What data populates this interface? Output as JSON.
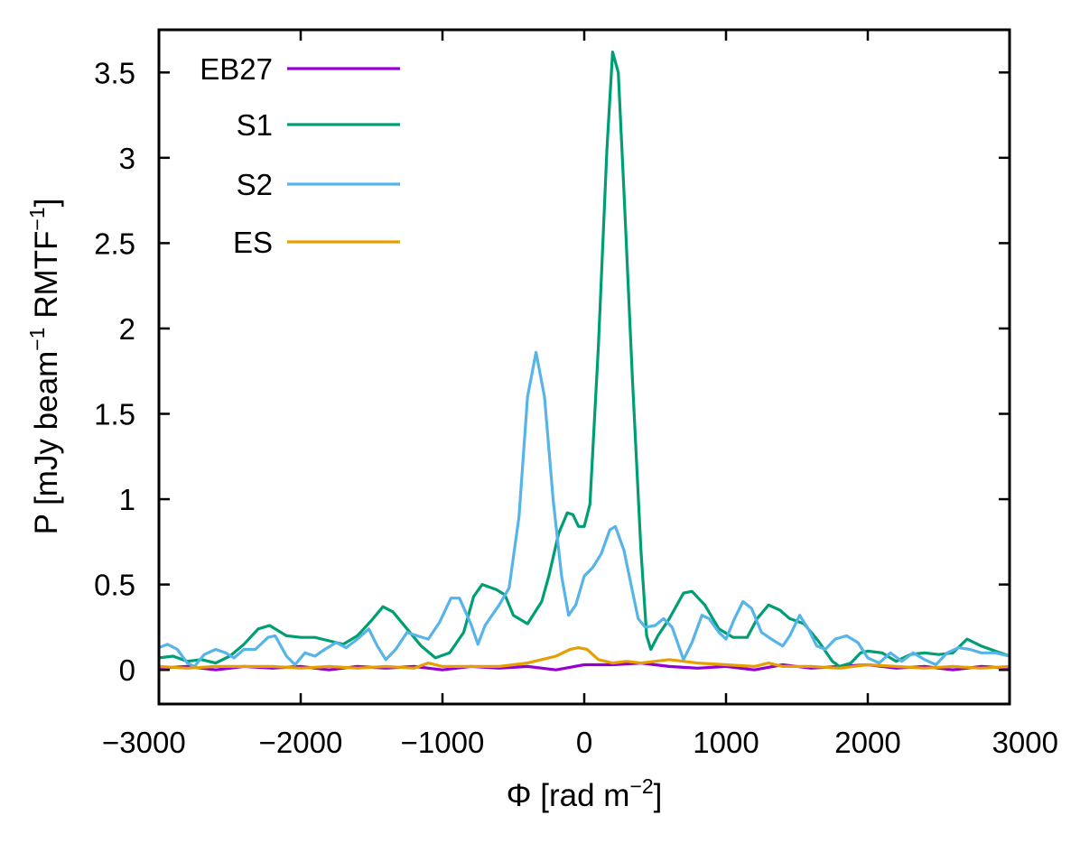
{
  "chart_data": {
    "type": "line",
    "xlabel_main": "Φ [rad m",
    "xlabel_sup": "−2",
    "xlabel_tail": "]",
    "ylabel_part1": "P [mJy beam",
    "ylabel_sup1": "−1",
    "ylabel_part2": " RMTF",
    "ylabel_sup2": "−1",
    "ylabel_tail": "]",
    "xlim": [
      -3000,
      3000
    ],
    "ylim": [
      -0.2,
      3.75
    ],
    "xticks": [
      -3000,
      -2000,
      -1000,
      0,
      1000,
      2000,
      3000
    ],
    "xtick_labels": [
      "−3000",
      "−2000",
      "−1000",
      "0",
      "1000",
      "2000",
      "3000"
    ],
    "yticks": [
      0,
      0.5,
      1,
      1.5,
      2,
      2.5,
      3,
      3.5
    ],
    "ytick_labels": [
      "0",
      "0.5",
      "1",
      "1.5",
      "2",
      "2.5",
      "3",
      "3.5"
    ],
    "legend_position": "top-left",
    "series": [
      {
        "name": "EB27",
        "color": "#9400d3",
        "points": [
          [
            -3000,
            0.01
          ],
          [
            -2800,
            0.02
          ],
          [
            -2600,
            0.0
          ],
          [
            -2400,
            0.02
          ],
          [
            -2200,
            0.01
          ],
          [
            -2000,
            0.02
          ],
          [
            -1800,
            0.0
          ],
          [
            -1600,
            0.02
          ],
          [
            -1400,
            0.01
          ],
          [
            -1200,
            0.02
          ],
          [
            -1000,
            0.0
          ],
          [
            -800,
            0.02
          ],
          [
            -600,
            0.01
          ],
          [
            -400,
            0.02
          ],
          [
            -200,
            0.0
          ],
          [
            0,
            0.03
          ],
          [
            200,
            0.03
          ],
          [
            400,
            0.04
          ],
          [
            600,
            0.02
          ],
          [
            800,
            0.01
          ],
          [
            1000,
            0.02
          ],
          [
            1200,
            0.0
          ],
          [
            1400,
            0.03
          ],
          [
            1600,
            0.01
          ],
          [
            1800,
            0.02
          ],
          [
            2000,
            0.03
          ],
          [
            2200,
            0.01
          ],
          [
            2400,
            0.02
          ],
          [
            2600,
            0.0
          ],
          [
            2800,
            0.02
          ],
          [
            3000,
            0.01
          ]
        ]
      },
      {
        "name": "S1",
        "color": "#009e73",
        "points": [
          [
            -3000,
            0.07
          ],
          [
            -2900,
            0.08
          ],
          [
            -2800,
            0.05
          ],
          [
            -2700,
            0.06
          ],
          [
            -2600,
            0.04
          ],
          [
            -2500,
            0.08
          ],
          [
            -2400,
            0.15
          ],
          [
            -2300,
            0.24
          ],
          [
            -2220,
            0.26
          ],
          [
            -2100,
            0.2
          ],
          [
            -2000,
            0.19
          ],
          [
            -1900,
            0.19
          ],
          [
            -1800,
            0.17
          ],
          [
            -1700,
            0.15
          ],
          [
            -1600,
            0.2
          ],
          [
            -1500,
            0.29
          ],
          [
            -1420,
            0.37
          ],
          [
            -1350,
            0.34
          ],
          [
            -1250,
            0.24
          ],
          [
            -1150,
            0.14
          ],
          [
            -1050,
            0.07
          ],
          [
            -950,
            0.1
          ],
          [
            -850,
            0.22
          ],
          [
            -780,
            0.43
          ],
          [
            -720,
            0.5
          ],
          [
            -620,
            0.47
          ],
          [
            -560,
            0.44
          ],
          [
            -500,
            0.32
          ],
          [
            -400,
            0.27
          ],
          [
            -300,
            0.4
          ],
          [
            -250,
            0.55
          ],
          [
            -180,
            0.8
          ],
          [
            -120,
            0.92
          ],
          [
            -80,
            0.91
          ],
          [
            -40,
            0.84
          ],
          [
            0,
            0.84
          ],
          [
            40,
            0.97
          ],
          [
            100,
            1.9
          ],
          [
            160,
            3.05
          ],
          [
            200,
            3.62
          ],
          [
            240,
            3.5
          ],
          [
            280,
            2.8
          ],
          [
            340,
            1.7
          ],
          [
            400,
            0.7
          ],
          [
            440,
            0.2
          ],
          [
            470,
            0.12
          ],
          [
            520,
            0.2
          ],
          [
            600,
            0.3
          ],
          [
            700,
            0.45
          ],
          [
            760,
            0.46
          ],
          [
            850,
            0.38
          ],
          [
            950,
            0.24
          ],
          [
            1050,
            0.19
          ],
          [
            1150,
            0.19
          ],
          [
            1220,
            0.3
          ],
          [
            1300,
            0.38
          ],
          [
            1380,
            0.35
          ],
          [
            1450,
            0.3
          ],
          [
            1550,
            0.27
          ],
          [
            1650,
            0.17
          ],
          [
            1750,
            0.05
          ],
          [
            1800,
            0.02
          ],
          [
            1880,
            0.04
          ],
          [
            1950,
            0.1
          ],
          [
            2000,
            0.11
          ],
          [
            2100,
            0.1
          ],
          [
            2200,
            0.05
          ],
          [
            2300,
            0.09
          ],
          [
            2400,
            0.1
          ],
          [
            2500,
            0.09
          ],
          [
            2600,
            0.1
          ],
          [
            2700,
            0.18
          ],
          [
            2800,
            0.14
          ],
          [
            2900,
            0.11
          ],
          [
            3000,
            0.08
          ]
        ]
      },
      {
        "name": "S2",
        "color": "#56b4e9",
        "points": [
          [
            -3000,
            0.13
          ],
          [
            -2940,
            0.15
          ],
          [
            -2870,
            0.12
          ],
          [
            -2800,
            0.04
          ],
          [
            -2750,
            0.02
          ],
          [
            -2680,
            0.09
          ],
          [
            -2600,
            0.12
          ],
          [
            -2530,
            0.1
          ],
          [
            -2470,
            0.07
          ],
          [
            -2400,
            0.12
          ],
          [
            -2320,
            0.12
          ],
          [
            -2230,
            0.19
          ],
          [
            -2180,
            0.2
          ],
          [
            -2100,
            0.08
          ],
          [
            -2040,
            0.03
          ],
          [
            -1970,
            0.1
          ],
          [
            -1900,
            0.08
          ],
          [
            -1830,
            0.12
          ],
          [
            -1750,
            0.16
          ],
          [
            -1680,
            0.13
          ],
          [
            -1600,
            0.18
          ],
          [
            -1520,
            0.24
          ],
          [
            -1460,
            0.14
          ],
          [
            -1400,
            0.06
          ],
          [
            -1330,
            0.12
          ],
          [
            -1250,
            0.22
          ],
          [
            -1180,
            0.2
          ],
          [
            -1100,
            0.18
          ],
          [
            -1020,
            0.28
          ],
          [
            -940,
            0.42
          ],
          [
            -880,
            0.42
          ],
          [
            -800,
            0.27
          ],
          [
            -750,
            0.15
          ],
          [
            -700,
            0.26
          ],
          [
            -600,
            0.38
          ],
          [
            -530,
            0.48
          ],
          [
            -460,
            0.9
          ],
          [
            -400,
            1.6
          ],
          [
            -340,
            1.86
          ],
          [
            -280,
            1.6
          ],
          [
            -220,
            1.0
          ],
          [
            -160,
            0.55
          ],
          [
            -110,
            0.32
          ],
          [
            -60,
            0.38
          ],
          [
            0,
            0.55
          ],
          [
            60,
            0.6
          ],
          [
            120,
            0.68
          ],
          [
            180,
            0.82
          ],
          [
            220,
            0.84
          ],
          [
            280,
            0.7
          ],
          [
            330,
            0.5
          ],
          [
            380,
            0.3
          ],
          [
            430,
            0.25
          ],
          [
            500,
            0.26
          ],
          [
            560,
            0.3
          ],
          [
            620,
            0.25
          ],
          [
            700,
            0.06
          ],
          [
            760,
            0.16
          ],
          [
            830,
            0.32
          ],
          [
            880,
            0.3
          ],
          [
            950,
            0.22
          ],
          [
            1000,
            0.18
          ],
          [
            1060,
            0.3
          ],
          [
            1120,
            0.4
          ],
          [
            1180,
            0.36
          ],
          [
            1250,
            0.22
          ],
          [
            1320,
            0.18
          ],
          [
            1400,
            0.14
          ],
          [
            1450,
            0.2
          ],
          [
            1520,
            0.32
          ],
          [
            1580,
            0.24
          ],
          [
            1640,
            0.14
          ],
          [
            1700,
            0.12
          ],
          [
            1770,
            0.18
          ],
          [
            1850,
            0.2
          ],
          [
            1930,
            0.16
          ],
          [
            2000,
            0.07
          ],
          [
            2080,
            0.04
          ],
          [
            2160,
            0.1
          ],
          [
            2240,
            0.05
          ],
          [
            2320,
            0.1
          ],
          [
            2400,
            0.06
          ],
          [
            2480,
            0.03
          ],
          [
            2560,
            0.1
          ],
          [
            2640,
            0.13
          ],
          [
            2720,
            0.12
          ],
          [
            2800,
            0.1
          ],
          [
            2900,
            0.1
          ],
          [
            3000,
            0.08
          ]
        ]
      },
      {
        "name": "ES",
        "color": "#e69f00",
        "points": [
          [
            -3000,
            0.02
          ],
          [
            -2800,
            0.01
          ],
          [
            -2600,
            0.02
          ],
          [
            -2400,
            0.02
          ],
          [
            -2200,
            0.02
          ],
          [
            -2000,
            0.01
          ],
          [
            -1800,
            0.02
          ],
          [
            -1600,
            0.01
          ],
          [
            -1400,
            0.02
          ],
          [
            -1200,
            0.01
          ],
          [
            -1100,
            0.04
          ],
          [
            -1000,
            0.02
          ],
          [
            -800,
            0.02
          ],
          [
            -600,
            0.02
          ],
          [
            -400,
            0.04
          ],
          [
            -300,
            0.06
          ],
          [
            -200,
            0.08
          ],
          [
            -100,
            0.12
          ],
          [
            -40,
            0.13
          ],
          [
            20,
            0.12
          ],
          [
            100,
            0.06
          ],
          [
            200,
            0.04
          ],
          [
            300,
            0.05
          ],
          [
            400,
            0.04
          ],
          [
            500,
            0.05
          ],
          [
            600,
            0.06
          ],
          [
            700,
            0.05
          ],
          [
            800,
            0.04
          ],
          [
            1000,
            0.03
          ],
          [
            1200,
            0.02
          ],
          [
            1300,
            0.04
          ],
          [
            1400,
            0.02
          ],
          [
            1600,
            0.02
          ],
          [
            1800,
            0.01
          ],
          [
            2000,
            0.03
          ],
          [
            2200,
            0.02
          ],
          [
            2400,
            0.01
          ],
          [
            2600,
            0.02
          ],
          [
            2800,
            0.01
          ],
          [
            3000,
            0.02
          ]
        ]
      }
    ]
  }
}
